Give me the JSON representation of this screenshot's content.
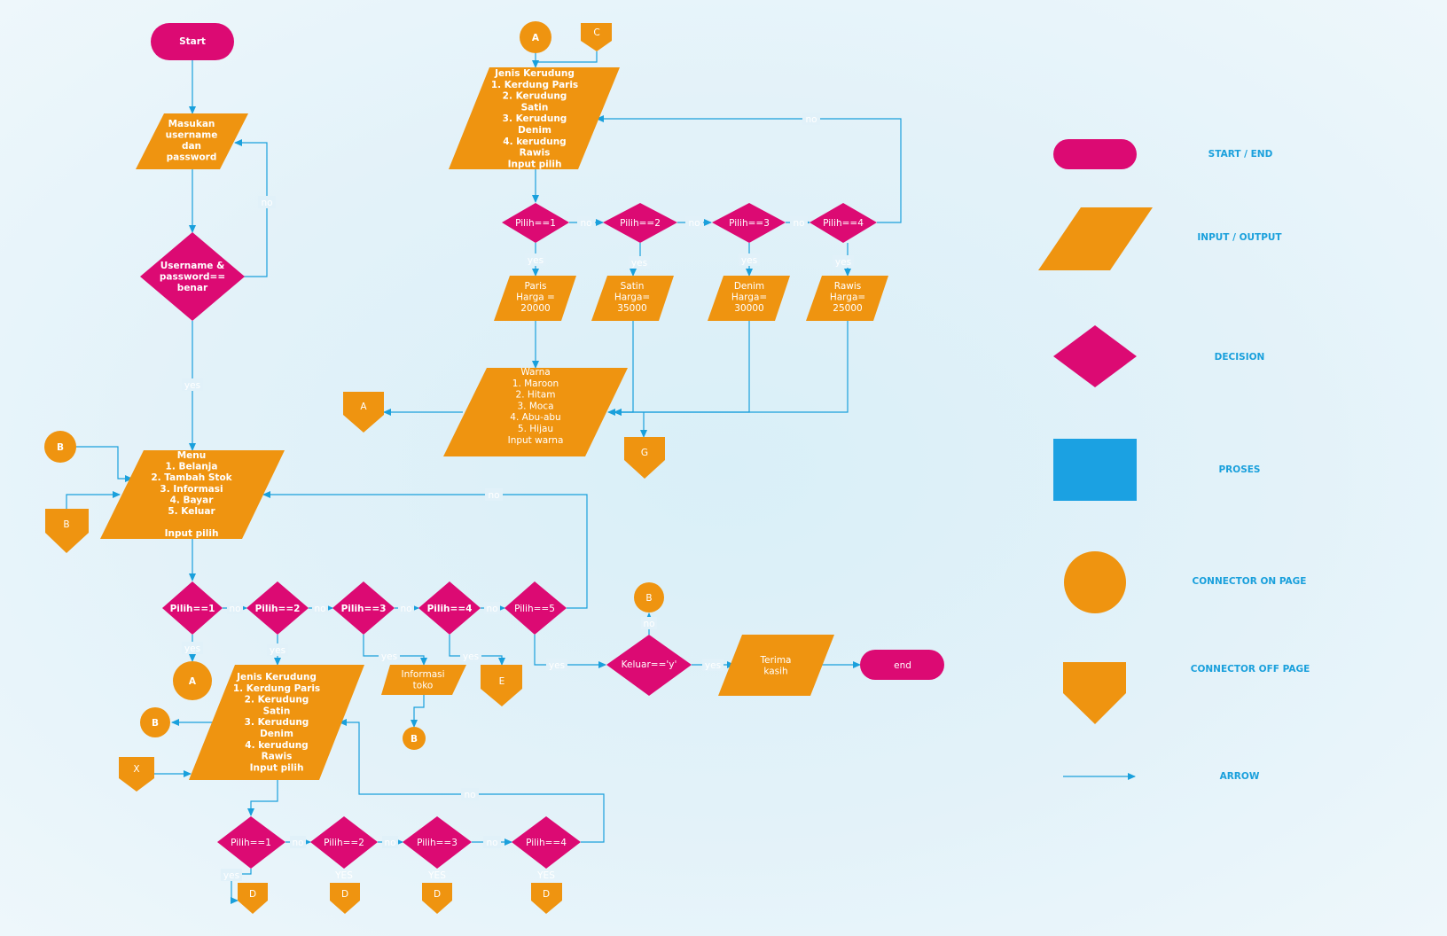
{
  "colors": {
    "terminal": "#dc0a73",
    "io": "#ef9410",
    "decision": "#dc0a73",
    "process": "#1ba1e2",
    "connector": "#ef9410",
    "arrow": "#1aa0dc",
    "text": "#ffffff"
  },
  "nodes": {
    "start": "Start",
    "login_io": [
      "Masukan",
      "username",
      "dan",
      "password"
    ],
    "login_check": [
      "Username &",
      "password==",
      "benar"
    ],
    "menu_io": [
      "Menu",
      "1. Belanja",
      "2. Tambah Stok",
      "3. Informasi",
      "4. Bayar",
      "5. Keluar",
      "",
      "Input pilih"
    ],
    "conn_b_top": "B",
    "offpage_b_left": "B",
    "menu_pilih1": "Pilih==1",
    "menu_pilih2": "Pilih==2",
    "menu_pilih3": "Pilih==3",
    "menu_pilih4": "Pilih==4",
    "menu_pilih5": "Pilih==5",
    "conn_a_menu": "A",
    "jenis_io": [
      "Jenis Kerudung",
      "1. Kerdung Paris",
      "2. Kerudung",
      "Satin",
      "3. Kerudung",
      "Denim",
      "4. kerudung",
      "Rawis",
      "Input pilih"
    ],
    "conn_b_jenis": "B",
    "offpage_x": "X",
    "informasi_io": [
      "Informasi",
      "toko"
    ],
    "conn_b_info": "B",
    "offpage_e": "E",
    "keluar_decision": "Keluar=='y'",
    "conn_b_keluar": "B",
    "terima_io": [
      "Terima",
      "kasih"
    ],
    "end": "end",
    "stock_pilih1": "Pilih==1",
    "stock_pilih2": "Pilih==2",
    "stock_pilih3": "Pilih==3",
    "stock_pilih4": "Pilih==4",
    "offpage_d1": "D",
    "offpage_d2": "D",
    "offpage_d3": "D",
    "offpage_d4": "D",
    "conn_a_top": "A",
    "offpage_c": "C",
    "jenis2_io": [
      "Jenis Kerudung",
      "1. Kerdung Paris",
      "2. Kerudung",
      "Satin",
      "3. Kerudung",
      "Denim",
      "4. kerudung",
      "Rawis",
      "Input pilih"
    ],
    "top_pilih1": "Pilih==1",
    "top_pilih2": "Pilih==2",
    "top_pilih3": "Pilih==3",
    "top_pilih4": "Pilih==4",
    "paris_io": [
      "Paris",
      "Harga =",
      "20000"
    ],
    "satin_io": [
      "Satin",
      "Harga=",
      "35000"
    ],
    "denim_io": [
      "Denim",
      "Harga=",
      "30000"
    ],
    "rawis_io": [
      "Rawis",
      "Harga=",
      "25000"
    ],
    "warna_io": [
      "Warna",
      "1. Maroon",
      "2. Hitam",
      "3. Moca",
      "4. Abu-abu",
      "5. Hijau",
      "Input warna"
    ],
    "offpage_a_warna": "A",
    "offpage_g": "G"
  },
  "edge_labels": {
    "no": "no",
    "yes": "yes",
    "YES": "YES"
  },
  "legend": {
    "start_end": "START   /  END",
    "input_output": "INPUT   / OUTPUT",
    "decision": "DECISION",
    "proses": "PROSES",
    "connector_on_page": "CONNECTOR ON PAGE",
    "connector_off_page": "CONNECTOR OFF PAGE",
    "arrow": "ARROW"
  }
}
